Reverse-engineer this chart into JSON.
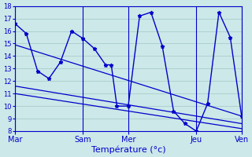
{
  "xlabel": "Température (°c)",
  "bg_color": "#cce8e8",
  "grid_color": "#aacccc",
  "line_color": "#0000cc",
  "ylim": [
    8,
    18
  ],
  "yticks": [
    8,
    9,
    10,
    11,
    12,
    13,
    14,
    15,
    16,
    17,
    18
  ],
  "xlim": [
    0,
    20
  ],
  "x_tick_labels": [
    "Mar",
    "Sam",
    "Mer",
    "Jeu",
    "Ven"
  ],
  "x_tick_positions": [
    0,
    6,
    10,
    16,
    20
  ],
  "line1_x": [
    0,
    1,
    2,
    3,
    4,
    5,
    6,
    7,
    8,
    8.5,
    9,
    10,
    11,
    12,
    13,
    14,
    15,
    16,
    17,
    18,
    19,
    20
  ],
  "line1_y": [
    16.6,
    15.8,
    12.8,
    12.2,
    13.5,
    16.0,
    15.4,
    14.6,
    13.3,
    13.3,
    10.0,
    10.0,
    17.2,
    17.5,
    14.8,
    9.6,
    8.6,
    8.0,
    10.2,
    17.5,
    15.5,
    9.2
  ],
  "line2_x": [
    0,
    20
  ],
  "line2_y": [
    14.9,
    9.2
  ],
  "line3_x": [
    0,
    20
  ],
  "line3_y": [
    11.6,
    8.6
  ],
  "line4_x": [
    0,
    20
  ],
  "line4_y": [
    11.0,
    8.2
  ],
  "ylabel_fontsize": 6,
  "xlabel_fontsize": 8
}
